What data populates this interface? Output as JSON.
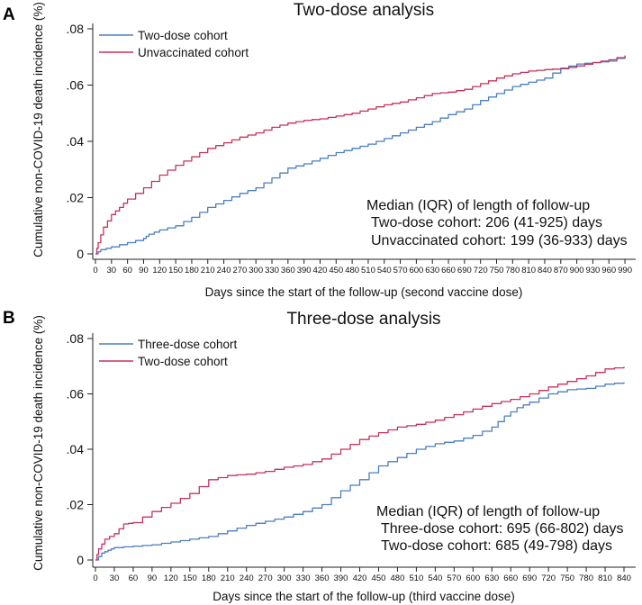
{
  "chart_data": [
    {
      "type": "line",
      "panel_label": "A",
      "title": "Two-dose analysis",
      "xlabel": "Days since the start of the follow-up (second vaccine dose)",
      "ylabel": "Cumulative non-COVID-19 death incidence (%)",
      "xlim": [
        0,
        1000
      ],
      "ylim": [
        0,
        0.08
      ],
      "yticks": [
        0,
        0.02,
        0.04,
        0.06,
        0.08
      ],
      "ytick_labels": [
        "0",
        ".02",
        ".04",
        ".06",
        ".08"
      ],
      "xticks": [
        0,
        30,
        60,
        90,
        120,
        150,
        180,
        210,
        240,
        270,
        300,
        330,
        360,
        390,
        420,
        450,
        480,
        510,
        540,
        570,
        600,
        630,
        660,
        690,
        720,
        750,
        780,
        810,
        840,
        870,
        900,
        930,
        960,
        990
      ],
      "xtick_labels": [
        "0",
        "30",
        "60",
        "90",
        "120",
        "150",
        "180",
        "210",
        "240",
        "270",
        "300",
        "330",
        "360",
        "390",
        "420",
        "450",
        "480",
        "510",
        "540",
        "570",
        "600",
        "630",
        "660",
        "690",
        "720",
        "750",
        "780",
        "810",
        "840",
        "870",
        "900",
        "930",
        "960",
        "990"
      ],
      "legend_position": "top-left",
      "series": [
        {
          "name": "Two-dose cohort",
          "color": "#4a7fc1",
          "x": [
            0,
            10,
            30,
            60,
            90,
            100,
            120,
            150,
            180,
            210,
            240,
            270,
            300,
            330,
            360,
            390,
            420,
            450,
            480,
            510,
            540,
            570,
            600,
            630,
            660,
            690,
            720,
            750,
            780,
            810,
            840,
            870,
            900,
            930,
            960,
            990
          ],
          "y": [
            0,
            0.0015,
            0.0025,
            0.004,
            0.0055,
            0.007,
            0.0085,
            0.01,
            0.013,
            0.0165,
            0.019,
            0.0215,
            0.0235,
            0.027,
            0.0305,
            0.032,
            0.034,
            0.036,
            0.0375,
            0.039,
            0.041,
            0.043,
            0.045,
            0.047,
            0.0495,
            0.0515,
            0.0545,
            0.057,
            0.0595,
            0.061,
            0.0625,
            0.066,
            0.0675,
            0.068,
            0.0685,
            0.0705
          ]
        },
        {
          "name": "Unvaccinated cohort",
          "color": "#c8325a",
          "x": [
            0,
            5,
            15,
            30,
            45,
            60,
            90,
            120,
            150,
            180,
            210,
            240,
            270,
            300,
            330,
            360,
            390,
            420,
            450,
            480,
            510,
            540,
            570,
            600,
            630,
            660,
            690,
            720,
            750,
            780,
            810,
            840,
            870,
            900,
            930,
            960,
            990
          ],
          "y": [
            0,
            0.004,
            0.0095,
            0.014,
            0.0165,
            0.0195,
            0.0235,
            0.028,
            0.0315,
            0.0345,
            0.0375,
            0.0395,
            0.0415,
            0.043,
            0.045,
            0.0465,
            0.0475,
            0.048,
            0.049,
            0.05,
            0.0515,
            0.053,
            0.054,
            0.0555,
            0.057,
            0.0575,
            0.0585,
            0.0605,
            0.0625,
            0.064,
            0.065,
            0.0655,
            0.0658,
            0.0668,
            0.068,
            0.069,
            0.0705
          ]
        }
      ],
      "annotation": {
        "heading": "Median (IQR) of length of follow-up",
        "lines": [
          "Two-dose cohort: 206 (41-925) days",
          "Unvaccinated cohort: 199 (36-933) days"
        ]
      }
    },
    {
      "type": "line",
      "panel_label": "B",
      "title": "Three-dose analysis",
      "xlabel": "Days since the start of the follow-up (third vaccine dose)",
      "ylabel": "Cumulative non-COVID-19 death incidence (%)",
      "xlim": [
        0,
        850
      ],
      "ylim": [
        0,
        0.08
      ],
      "yticks": [
        0,
        0.02,
        0.04,
        0.06,
        0.08
      ],
      "ytick_labels": [
        "0",
        ".02",
        ".04",
        ".06",
        ".08"
      ],
      "xticks": [
        0,
        30,
        60,
        90,
        120,
        150,
        180,
        210,
        240,
        270,
        300,
        330,
        360,
        390,
        420,
        450,
        480,
        510,
        540,
        570,
        600,
        630,
        660,
        690,
        720,
        750,
        780,
        810,
        840
      ],
      "xtick_labels": [
        "0",
        "30",
        "60",
        "90",
        "120",
        "150",
        "180",
        "210",
        "240",
        "270",
        "300",
        "330",
        "360",
        "390",
        "420",
        "450",
        "480",
        "510",
        "540",
        "570",
        "600",
        "630",
        "660",
        "690",
        "720",
        "750",
        "780",
        "810",
        "840"
      ],
      "legend_position": "top-left",
      "series": [
        {
          "name": "Three-dose cohort",
          "color": "#4a7fc1",
          "x": [
            0,
            10,
            20,
            30,
            60,
            90,
            120,
            150,
            180,
            210,
            240,
            270,
            300,
            330,
            360,
            390,
            420,
            450,
            480,
            510,
            540,
            570,
            600,
            630,
            650,
            670,
            690,
            720,
            750,
            780,
            810,
            840
          ],
          "y": [
            0,
            0.0025,
            0.0035,
            0.0045,
            0.005,
            0.0055,
            0.0065,
            0.0075,
            0.0085,
            0.0105,
            0.0125,
            0.014,
            0.0155,
            0.0175,
            0.02,
            0.025,
            0.029,
            0.034,
            0.037,
            0.04,
            0.042,
            0.043,
            0.045,
            0.048,
            0.052,
            0.055,
            0.057,
            0.06,
            0.0615,
            0.062,
            0.0635,
            0.0642
          ]
        },
        {
          "name": "Two-dose cohort",
          "color": "#c8325a",
          "x": [
            0,
            5,
            15,
            30,
            45,
            60,
            90,
            120,
            150,
            180,
            210,
            240,
            270,
            300,
            330,
            360,
            390,
            420,
            450,
            480,
            510,
            540,
            570,
            600,
            630,
            660,
            690,
            720,
            750,
            780,
            810,
            840
          ],
          "y": [
            0,
            0.004,
            0.0075,
            0.0095,
            0.013,
            0.0135,
            0.0175,
            0.0205,
            0.024,
            0.029,
            0.0305,
            0.031,
            0.032,
            0.0335,
            0.0345,
            0.0365,
            0.04,
            0.0435,
            0.046,
            0.048,
            0.049,
            0.0505,
            0.0525,
            0.0545,
            0.0565,
            0.058,
            0.06,
            0.0625,
            0.0645,
            0.0665,
            0.069,
            0.0698
          ]
        }
      ],
      "annotation": {
        "heading": "Median (IQR) of length of follow-up",
        "lines": [
          "Three-dose cohort: 695 (66-802) days",
          "Two-dose cohort: 685 (49-798) days"
        ]
      }
    }
  ]
}
